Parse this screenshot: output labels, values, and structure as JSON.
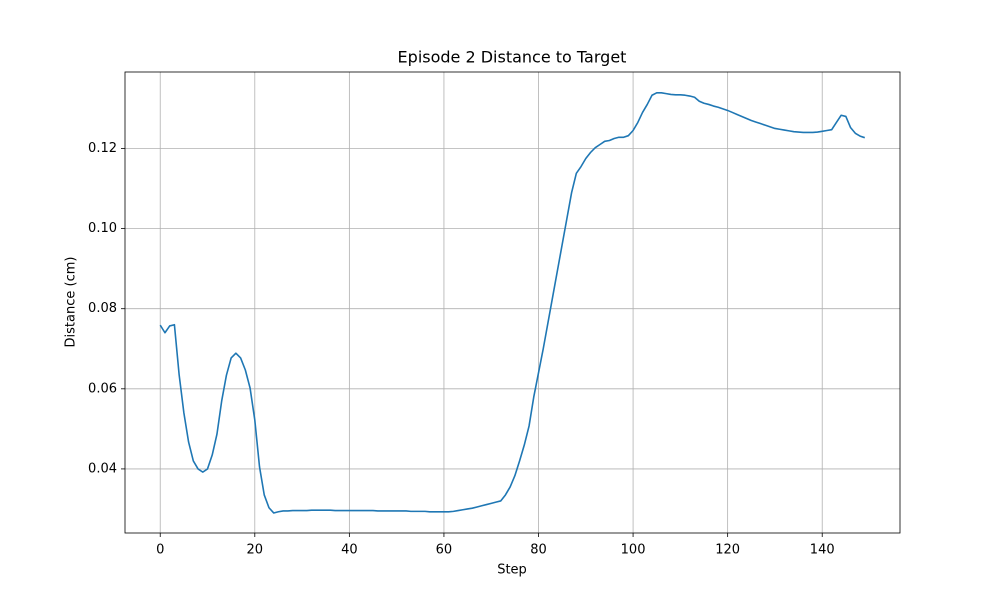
{
  "chart_data": {
    "type": "line",
    "title": "Episode 2 Distance to Target",
    "x_label": "Step",
    "y_label": "Distance (cm)",
    "x": [
      0,
      1,
      2,
      3,
      4,
      5,
      6,
      7,
      8,
      9,
      10,
      11,
      12,
      13,
      14,
      15,
      16,
      17,
      18,
      19,
      20,
      21,
      22,
      23,
      24,
      25,
      26,
      27,
      28,
      29,
      30,
      31,
      32,
      33,
      34,
      35,
      36,
      37,
      38,
      39,
      40,
      41,
      42,
      43,
      44,
      45,
      46,
      47,
      48,
      49,
      50,
      51,
      52,
      53,
      54,
      55,
      56,
      57,
      58,
      59,
      60,
      61,
      62,
      63,
      64,
      65,
      66,
      67,
      68,
      69,
      70,
      71,
      72,
      73,
      74,
      75,
      76,
      77,
      78,
      79,
      80,
      81,
      82,
      83,
      84,
      85,
      86,
      87,
      88,
      89,
      90,
      91,
      92,
      93,
      94,
      95,
      96,
      97,
      98,
      99,
      100,
      101,
      102,
      103,
      104,
      105,
      106,
      107,
      108,
      109,
      110,
      111,
      112,
      113,
      114,
      115,
      116,
      117,
      118,
      119,
      120,
      121,
      122,
      123,
      124,
      125,
      126,
      127,
      128,
      129,
      130,
      131,
      132,
      133,
      134,
      135,
      136,
      137,
      138,
      139,
      140,
      141,
      142,
      143,
      144,
      145,
      146,
      147,
      148,
      149
    ],
    "series": [
      {
        "name": "Distance",
        "color": "#1f77b4",
        "values": [
          0.0759,
          0.074,
          0.0757,
          0.076,
          0.0635,
          0.054,
          0.0467,
          0.042,
          0.04,
          0.0392,
          0.04,
          0.0435,
          0.0487,
          0.057,
          0.0634,
          0.0677,
          0.0689,
          0.0677,
          0.0647,
          0.0602,
          0.0522,
          0.0405,
          0.0335,
          0.0303,
          0.029,
          0.0293,
          0.0295,
          0.0295,
          0.0296,
          0.0296,
          0.0296,
          0.0296,
          0.0297,
          0.0297,
          0.0297,
          0.0297,
          0.0297,
          0.0296,
          0.0296,
          0.0296,
          0.0296,
          0.0296,
          0.0296,
          0.0296,
          0.0296,
          0.0296,
          0.0295,
          0.0295,
          0.0295,
          0.0295,
          0.0295,
          0.0295,
          0.0295,
          0.0294,
          0.0294,
          0.0294,
          0.0294,
          0.0293,
          0.0293,
          0.0293,
          0.0293,
          0.0293,
          0.0294,
          0.0296,
          0.0298,
          0.03,
          0.0302,
          0.0305,
          0.0308,
          0.0311,
          0.0314,
          0.0317,
          0.032,
          0.0335,
          0.0355,
          0.0383,
          0.042,
          0.046,
          0.0507,
          0.058,
          0.064,
          0.07,
          0.0765,
          0.083,
          0.0895,
          0.096,
          0.1025,
          0.109,
          0.1138,
          0.1155,
          0.1175,
          0.119,
          0.1202,
          0.121,
          0.1218,
          0.122,
          0.1225,
          0.1228,
          0.1228,
          0.1232,
          0.1245,
          0.1265,
          0.129,
          0.131,
          0.1333,
          0.1339,
          0.1339,
          0.1337,
          0.1335,
          0.1334,
          0.1334,
          0.1333,
          0.1331,
          0.1328,
          0.1318,
          0.1313,
          0.131,
          0.1306,
          0.1303,
          0.1299,
          0.1295,
          0.129,
          0.1285,
          0.128,
          0.1275,
          0.127,
          0.1266,
          0.1262,
          0.1258,
          0.1254,
          0.125,
          0.1248,
          0.1246,
          0.1244,
          0.1242,
          0.1241,
          0.124,
          0.124,
          0.124,
          0.1241,
          0.1243,
          0.1245,
          0.1247,
          0.1265,
          0.1283,
          0.128,
          0.1252,
          0.1238,
          0.1231,
          0.1227
        ]
      }
    ],
    "xlim": [
      -7.45,
      156.45
    ],
    "xticks": [
      0,
      20,
      40,
      60,
      80,
      100,
      120,
      140
    ],
    "ylim": [
      0.024,
      0.1391
    ],
    "yticks": [
      0.04,
      0.06,
      0.08,
      {
        "value": 0.1,
        "label": "0.10"
      },
      0.12
    ],
    "grid": true
  }
}
